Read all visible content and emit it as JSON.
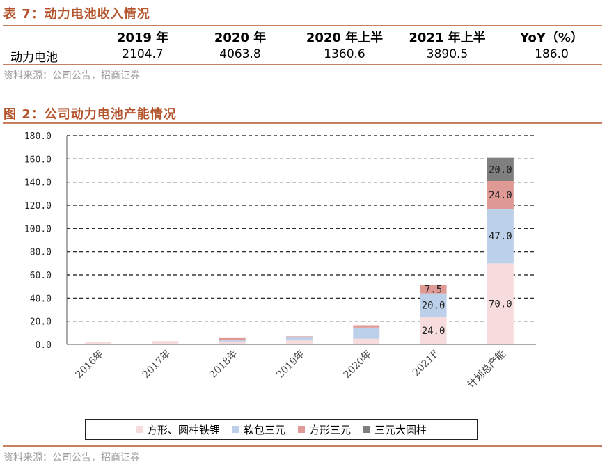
{
  "table_section": {
    "title": "表 7：动力电池收入情况",
    "headers": [
      "",
      "2019 年",
      "2020 年",
      "2020 年上半",
      "2021 年上半",
      "YoY（%）"
    ],
    "rows": [
      [
        "动力电池",
        "2104.7",
        "4063.8",
        "1360.6",
        "3890.5",
        "186.0"
      ]
    ],
    "source": "资料来源：公司公告，招商证券"
  },
  "chart_section": {
    "title": "图 2：公司动力电池产能情况",
    "source": "资料来源：公司公告，招商证券"
  },
  "chart_data": {
    "type": "bar",
    "stacked": true,
    "categories": [
      "2016年",
      "2017年",
      "2018年",
      "2019年",
      "2020年",
      "2021F",
      "计划总产能"
    ],
    "series": [
      {
        "name": "方形、圆柱铁锂",
        "color": "#f6dcdc",
        "values": [
          2.0,
          3.0,
          2.5,
          3.5,
          5.0,
          24.0,
          70.0
        ]
      },
      {
        "name": "软包三元",
        "color": "#bcd0ea",
        "values": [
          0.0,
          0.0,
          1.0,
          2.5,
          9.5,
          20.0,
          47.0
        ]
      },
      {
        "name": "方形三元",
        "color": "#e09a96",
        "values": [
          0.0,
          0.0,
          2.0,
          1.0,
          2.0,
          7.5,
          24.0
        ]
      },
      {
        "name": "三元大圆柱",
        "color": "#7f7f7f",
        "values": [
          0.0,
          0.0,
          0.0,
          0.0,
          0.0,
          0.0,
          20.0
        ]
      }
    ],
    "data_labels": [
      {
        "category": "2021F",
        "series": "方形、圆柱铁锂",
        "text": "24.0"
      },
      {
        "category": "2021F",
        "series": "软包三元",
        "text": "20.0"
      },
      {
        "category": "2021F",
        "series": "方形三元",
        "text": "7.5"
      },
      {
        "category": "计划总产能",
        "series": "方形、圆柱铁锂",
        "text": "70.0"
      },
      {
        "category": "计划总产能",
        "series": "软包三元",
        "text": "47.0"
      },
      {
        "category": "计划总产能",
        "series": "方形三元",
        "text": "24.0"
      },
      {
        "category": "计划总产能",
        "series": "三元大圆柱",
        "text": "20.0"
      }
    ],
    "y_ticks": [
      "0.0",
      "20.0",
      "40.0",
      "60.0",
      "80.0",
      "100.0",
      "120.0",
      "140.0",
      "160.0",
      "180.0"
    ],
    "ylim": [
      0,
      180
    ],
    "grid": "dashed-horizontal",
    "legend_position": "bottom"
  }
}
